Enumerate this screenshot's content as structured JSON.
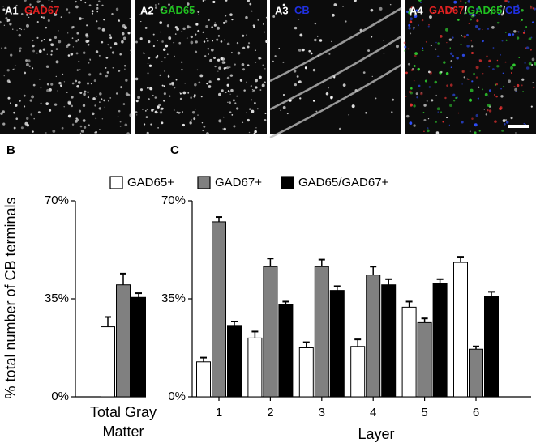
{
  "panels": [
    {
      "label": "A1",
      "stains": [
        {
          "text": "GAD67",
          "color": "#e02020"
        }
      ]
    },
    {
      "label": "A2",
      "stains": [
        {
          "text": "GAD65",
          "color": "#20c020"
        }
      ]
    },
    {
      "label": "A3",
      "stains": [
        {
          "text": "CB",
          "color": "#2030e0"
        }
      ]
    },
    {
      "label": "A4",
      "stains": [
        {
          "text": "GAD67",
          "color": "#e02020"
        },
        {
          "text": "/",
          "color": "#ffffff"
        },
        {
          "text": "GAD65",
          "color": "#20c020"
        },
        {
          "text": "/",
          "color": "#ffffff"
        },
        {
          "text": "CB",
          "color": "#2030e0"
        }
      ]
    }
  ],
  "chart_data": [
    {
      "type": "bar",
      "panel_label": "B",
      "y_label": "% total number of CB terminals",
      "categories": [
        "Total Gray\nMatter"
      ],
      "series": [
        {
          "color": "#ffffff",
          "values": [
            25
          ],
          "errors": [
            3.5
          ]
        },
        {
          "color": "#808080",
          "values": [
            40
          ],
          "errors": [
            4
          ]
        },
        {
          "color": "#000000",
          "values": [
            35.5
          ],
          "errors": [
            1.5
          ]
        }
      ],
      "ylim": [
        0,
        70
      ],
      "yticks": [
        {
          "value": 0,
          "label": "0%"
        },
        {
          "value": 35,
          "label": "35%"
        },
        {
          "value": 70,
          "label": "70%"
        }
      ]
    },
    {
      "type": "bar",
      "panel_label": "C",
      "x_label": "Layer",
      "categories": [
        "1",
        "2",
        "3",
        "4",
        "5",
        "6"
      ],
      "series": [
        {
          "name": "GAD65+",
          "color": "#ffffff",
          "values": [
            12.5,
            21,
            17.5,
            18,
            32,
            48
          ],
          "errors": [
            1.5,
            2.3,
            2,
            2.5,
            2,
            2
          ]
        },
        {
          "name": "GAD67+",
          "color": "#808080",
          "values": [
            62.5,
            46.5,
            46.5,
            43.5,
            26.5,
            17
          ],
          "errors": [
            1.7,
            2.9,
            2.5,
            3,
            1.5,
            1
          ]
        },
        {
          "name": "GAD65/GAD67+",
          "color": "#000000",
          "values": [
            25.5,
            33,
            38,
            40,
            40.5,
            36
          ],
          "errors": [
            1.4,
            1,
            1.5,
            2,
            1.5,
            1.5
          ]
        }
      ],
      "ylim": [
        0,
        70
      ],
      "yticks": [
        {
          "value": 0,
          "label": "0%"
        },
        {
          "value": 35,
          "label": "35%"
        },
        {
          "value": 70,
          "label": "70%"
        }
      ]
    }
  ]
}
